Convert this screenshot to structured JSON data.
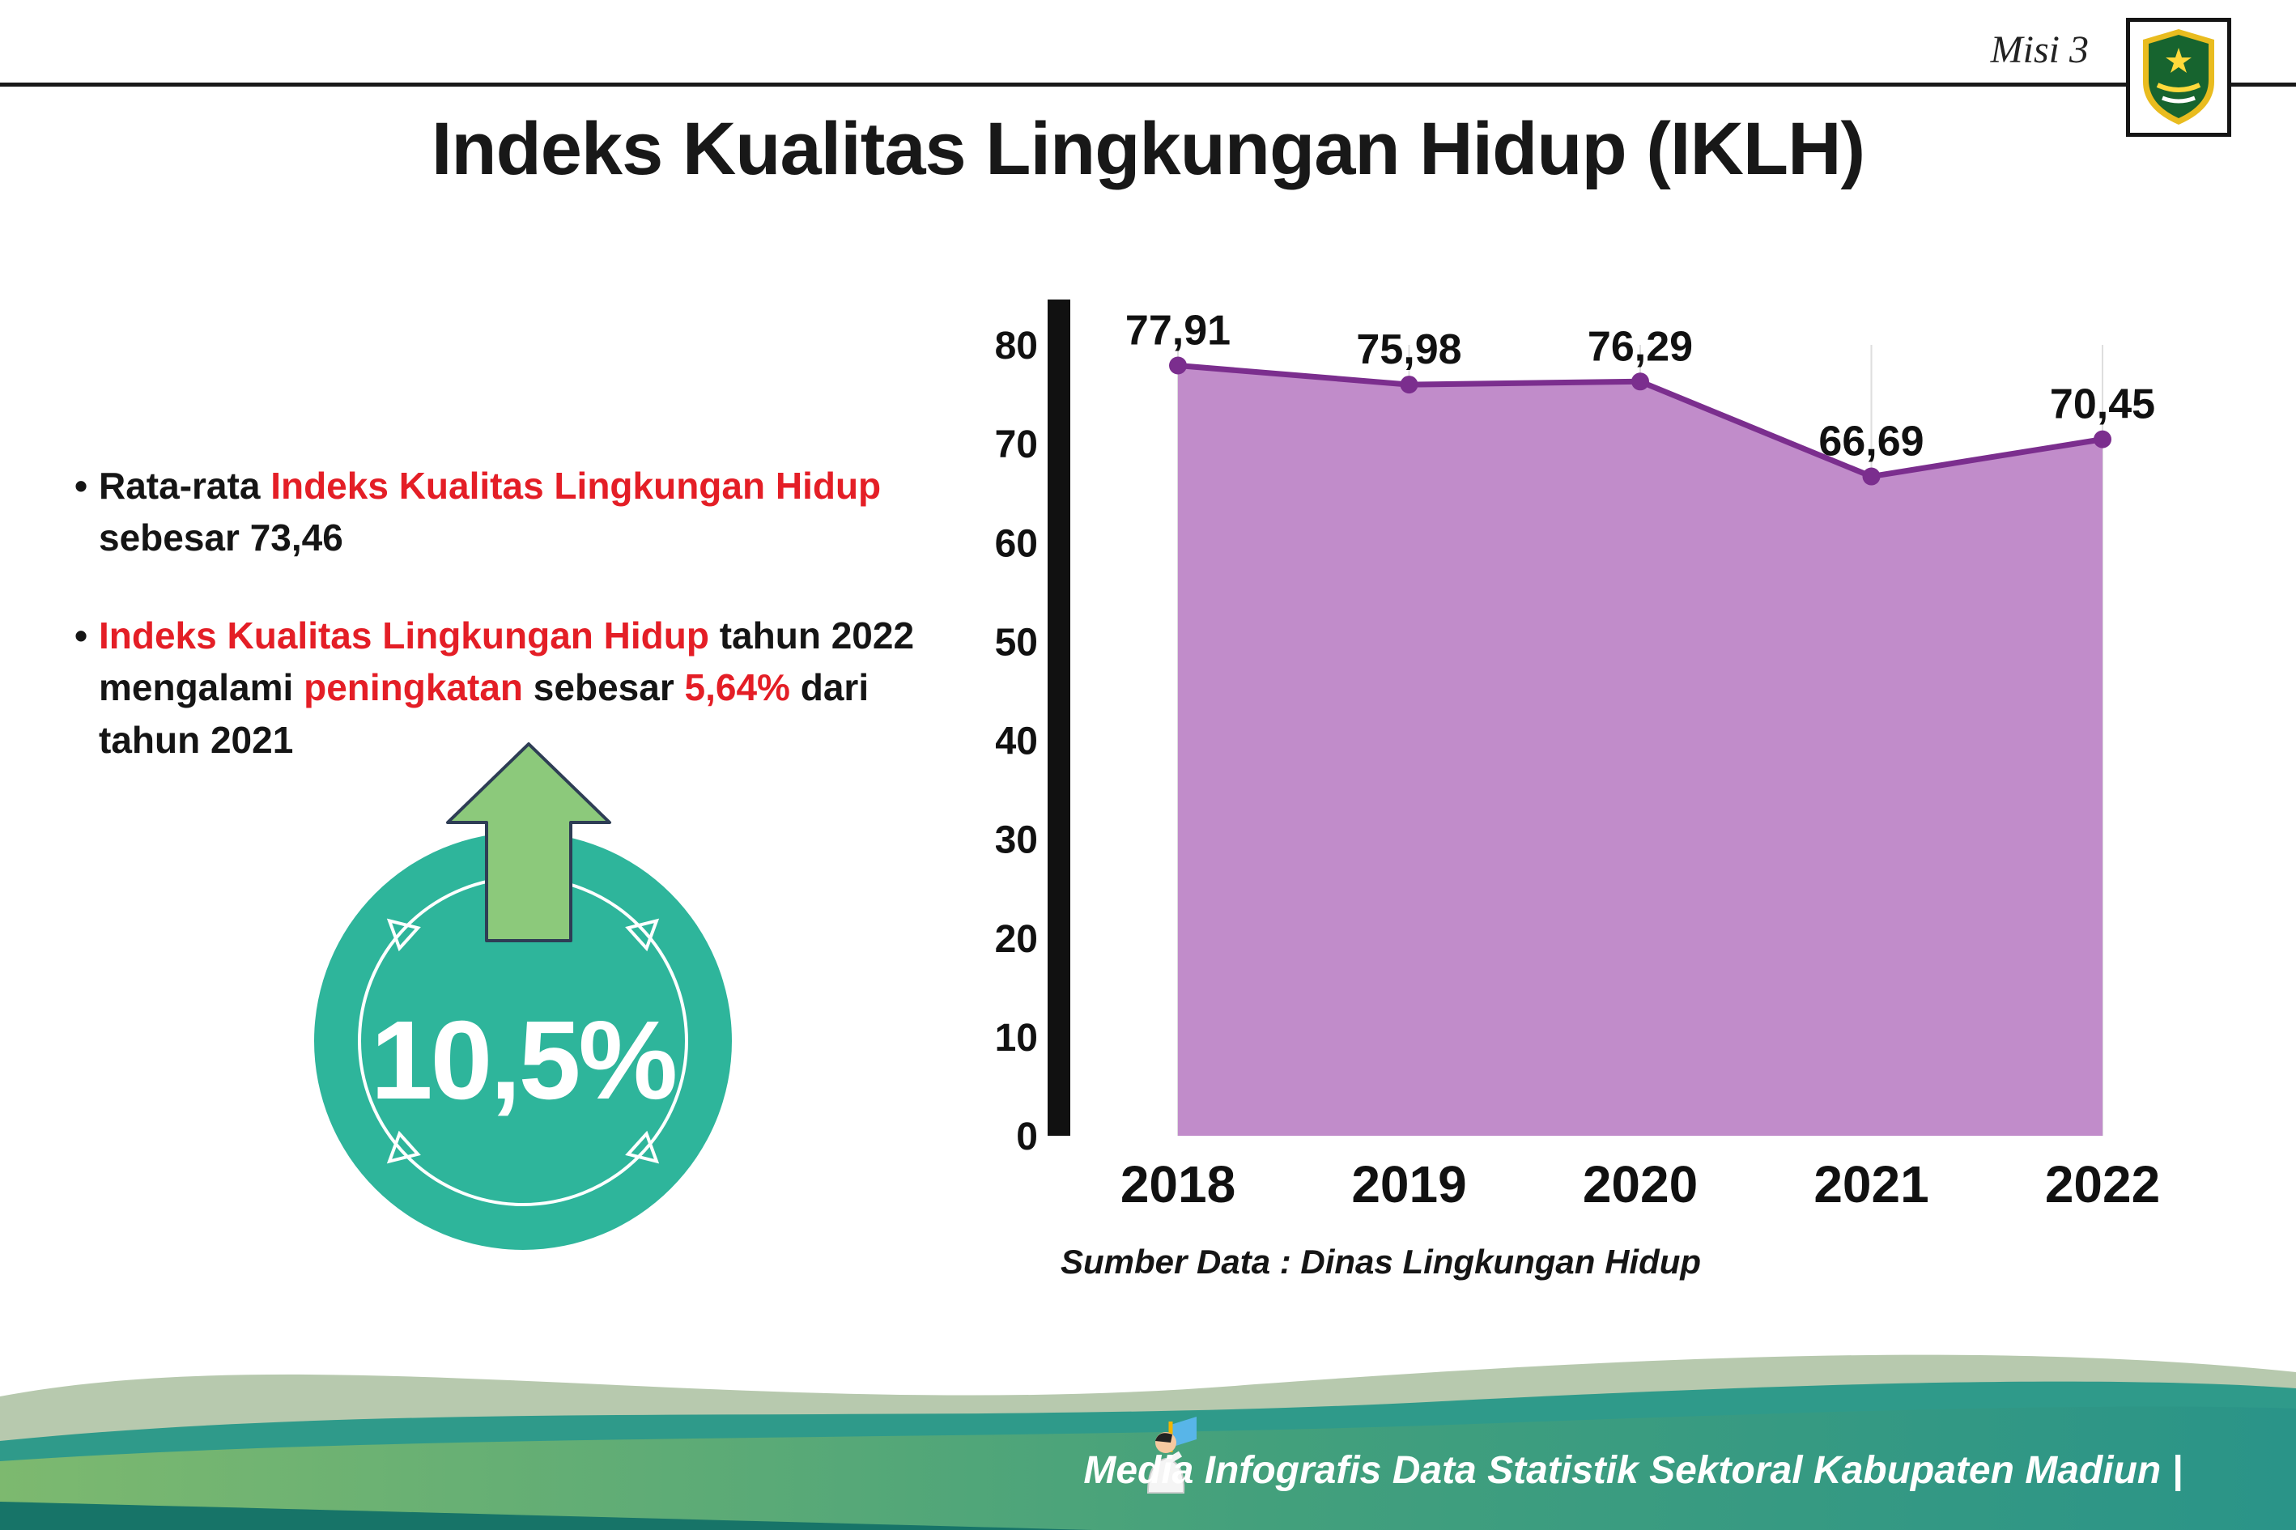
{
  "colors": {
    "accent_red": "#e41e26",
    "badge_teal": "#2eb59b",
    "arrow_green": "#8cc97b",
    "area_purple": "#c18cca",
    "line_purple": "#7b2e8e",
    "footer_green": "#7db96f",
    "footer_teal": "#2d9a8a"
  },
  "header": {
    "misi_label": "Misi 3",
    "title": "Indeks Kualitas Lingkungan Hidup (IKLH)",
    "logo_icon": "kabupaten-madiun-logo"
  },
  "bullets": {
    "b1_dot": "•",
    "b1_s1": "Rata-rata ",
    "b1_s2": "Indeks Kualitas Lingkungan Hidup",
    "b1_s3": " sebesar 73,46",
    "b2_dot": "•",
    "b2_s1": "Indeks Kualitas Lingkungan Hidup",
    "b2_s2": " tahun 2022 mengalami ",
    "b2_s3": "peningkatan",
    "b2_s4": " sebesar ",
    "b2_s5": "5,64%",
    "b2_s6": " dari tahun 2021"
  },
  "badge": {
    "value": "10,5%",
    "icon": "up-arrow-icon"
  },
  "chart_data": {
    "type": "area",
    "title": "",
    "x": [
      "2018",
      "2019",
      "2020",
      "2021",
      "2022"
    ],
    "values": [
      77.91,
      75.98,
      76.29,
      66.69,
      70.45
    ],
    "value_labels": [
      "77,91",
      "75,98",
      "76,29",
      "66,69",
      "70,45"
    ],
    "ylim": [
      0,
      80
    ],
    "yticks": [
      "0",
      "10",
      "20",
      "30",
      "40",
      "50",
      "60",
      "70",
      "80"
    ],
    "grid": "vertical-light",
    "legend": "none",
    "area_color": "#c18cca",
    "line_color": "#7b2e8e",
    "source": "Sumber Data : Dinas Lingkungan Hidup"
  },
  "footer": {
    "credit": "Media Infografis Data Statistik Sektoral Kabupaten Madiun |",
    "mascot_icon": "mascot-icon"
  }
}
